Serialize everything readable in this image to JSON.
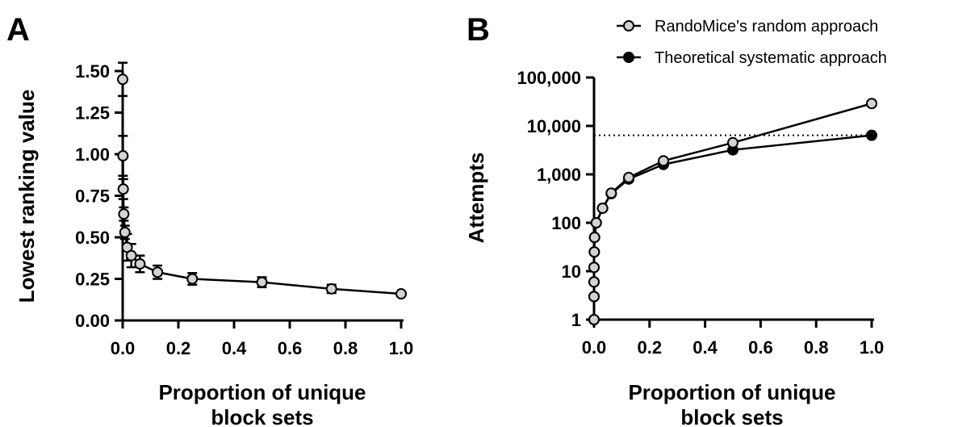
{
  "panels": {
    "a": {
      "letter": "A"
    },
    "b": {
      "letter": "B"
    }
  },
  "legend": {
    "random_label": "RandoMice's random approach",
    "systematic_label": "Theoretical systematic approach"
  },
  "chart_data": [
    {
      "type": "scatter",
      "panel": "A",
      "title": "",
      "xlabel": [
        "Proportion of unique",
        "block sets"
      ],
      "ylabel": "Lowest ranking value",
      "xlim": [
        0,
        1.0
      ],
      "ylim": [
        0,
        1.5
      ],
      "x_ticks": [
        "0.0",
        "0.2",
        "0.4",
        "0.6",
        "0.8",
        "1.0"
      ],
      "x_tick_values": [
        0,
        0.2,
        0.4,
        0.6,
        0.8,
        1.0
      ],
      "y_ticks": [
        "0.00",
        "0.25",
        "0.50",
        "0.75",
        "1.00",
        "1.25",
        "1.50"
      ],
      "y_tick_values": [
        0,
        0.25,
        0.5,
        0.75,
        1.0,
        1.25,
        1.5
      ],
      "grid": false,
      "series": [
        {
          "marker": "open-circle",
          "marker_color": "#d3d3d3",
          "line_color": "#000000",
          "points": [
            {
              "x": 0.0,
              "y": 1.45,
              "err": 0.1
            },
            {
              "x": 0.001,
              "y": 0.99,
              "err": 0.12
            },
            {
              "x": 0.002,
              "y": 0.79,
              "err": 0.06
            },
            {
              "x": 0.004,
              "y": 0.64,
              "err": 0.04
            },
            {
              "x": 0.008,
              "y": 0.53,
              "err": 0.04
            },
            {
              "x": 0.016,
              "y": 0.44,
              "err": 0.08
            },
            {
              "x": 0.031,
              "y": 0.39,
              "err": 0.07
            },
            {
              "x": 0.062,
              "y": 0.34,
              "err": 0.05
            },
            {
              "x": 0.125,
              "y": 0.29,
              "err": 0.04
            },
            {
              "x": 0.25,
              "y": 0.25,
              "err": 0.035
            },
            {
              "x": 0.5,
              "y": 0.23,
              "err": 0.03
            },
            {
              "x": 0.75,
              "y": 0.19,
              "err": 0.025
            },
            {
              "x": 1.0,
              "y": 0.16,
              "err": 0.0
            }
          ]
        }
      ]
    },
    {
      "type": "line",
      "panel": "B",
      "title": "",
      "xlabel": [
        "Proportion of unique",
        "block sets"
      ],
      "ylabel": "Attempts",
      "xlim": [
        0,
        1.0
      ],
      "ylim": [
        1,
        100000
      ],
      "y_scale": "log",
      "x_ticks": [
        "0.0",
        "0.2",
        "0.4",
        "0.6",
        "0.8",
        "1.0"
      ],
      "x_tick_values": [
        0,
        0.2,
        0.4,
        0.6,
        0.8,
        1.0
      ],
      "y_ticks": [
        "1",
        "10",
        "100",
        "1,000",
        "10,000",
        "100,000"
      ],
      "y_tick_values": [
        1,
        10,
        100,
        1000,
        10000,
        100000
      ],
      "grid": false,
      "legend_position": "top-right",
      "reference_line": {
        "y": 6400,
        "style": "dotted"
      },
      "series": [
        {
          "name": "RandoMice's random approach",
          "marker": "open-circle",
          "marker_color": "#d3d3d3",
          "points": [
            {
              "x": 0.0,
              "y": 1
            },
            {
              "x": 0.0,
              "y": 3
            },
            {
              "x": 0.0,
              "y": 6
            },
            {
              "x": 0.0,
              "y": 12
            },
            {
              "x": 0.001,
              "y": 25
            },
            {
              "x": 0.002,
              "y": 50
            },
            {
              "x": 0.008,
              "y": 100
            },
            {
              "x": 0.031,
              "y": 200
            },
            {
              "x": 0.062,
              "y": 410
            },
            {
              "x": 0.125,
              "y": 860
            },
            {
              "x": 0.25,
              "y": 1900
            },
            {
              "x": 0.5,
              "y": 4500
            },
            {
              "x": 1.0,
              "y": 29000
            }
          ]
        },
        {
          "name": "Theoretical systematic approach",
          "marker": "filled-circle",
          "marker_color": "#000000",
          "points": [
            {
              "x": 0.0,
              "y": 1
            },
            {
              "x": 0.0,
              "y": 3
            },
            {
              "x": 0.0,
              "y": 6
            },
            {
              "x": 0.0,
              "y": 12
            },
            {
              "x": 0.001,
              "y": 25
            },
            {
              "x": 0.002,
              "y": 50
            },
            {
              "x": 0.008,
              "y": 100
            },
            {
              "x": 0.031,
              "y": 200
            },
            {
              "x": 0.062,
              "y": 400
            },
            {
              "x": 0.125,
              "y": 800
            },
            {
              "x": 0.25,
              "y": 1600
            },
            {
              "x": 0.5,
              "y": 3200
            },
            {
              "x": 1.0,
              "y": 6400
            }
          ]
        }
      ]
    }
  ]
}
